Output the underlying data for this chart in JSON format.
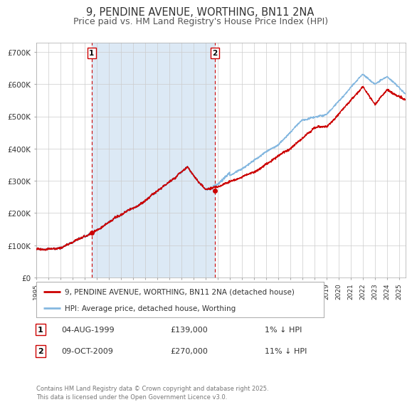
{
  "title": "9, PENDINE AVENUE, WORTHING, BN11 2NA",
  "subtitle": "Price paid vs. HM Land Registry's House Price Index (HPI)",
  "title_fontsize": 10.5,
  "subtitle_fontsize": 9,
  "background_color": "#ffffff",
  "plot_bg_color": "#ffffff",
  "grid_color": "#cccccc",
  "shaded_region": [
    1999.59,
    2009.77
  ],
  "shaded_color": "#dce9f5",
  "red_line_color": "#cc0000",
  "blue_line_color": "#85b8e0",
  "marker1_date": 1999.59,
  "marker1_value": 139000,
  "marker2_date": 2009.77,
  "marker2_value": 270000,
  "ylim": [
    0,
    730000
  ],
  "xlim": [
    1995.0,
    2025.5
  ],
  "yticks": [
    0,
    100000,
    200000,
    300000,
    400000,
    500000,
    600000,
    700000
  ],
  "ytick_labels": [
    "£0",
    "£100K",
    "£200K",
    "£300K",
    "£400K",
    "£500K",
    "£600K",
    "£700K"
  ],
  "xtick_years": [
    1995,
    1996,
    1997,
    1998,
    1999,
    2000,
    2001,
    2002,
    2003,
    2004,
    2005,
    2006,
    2007,
    2008,
    2009,
    2010,
    2011,
    2012,
    2013,
    2014,
    2015,
    2016,
    2017,
    2018,
    2019,
    2020,
    2021,
    2022,
    2023,
    2024,
    2025
  ],
  "legend_label_red": "9, PENDINE AVENUE, WORTHING, BN11 2NA (detached house)",
  "legend_label_blue": "HPI: Average price, detached house, Worthing",
  "annotation1_date": "04-AUG-1999",
  "annotation1_price": "£139,000",
  "annotation1_hpi": "1% ↓ HPI",
  "annotation2_date": "09-OCT-2009",
  "annotation2_price": "£270,000",
  "annotation2_hpi": "11% ↓ HPI",
  "footer": "Contains HM Land Registry data © Crown copyright and database right 2025.\nThis data is licensed under the Open Government Licence v3.0.",
  "box_color": "#cc0000"
}
